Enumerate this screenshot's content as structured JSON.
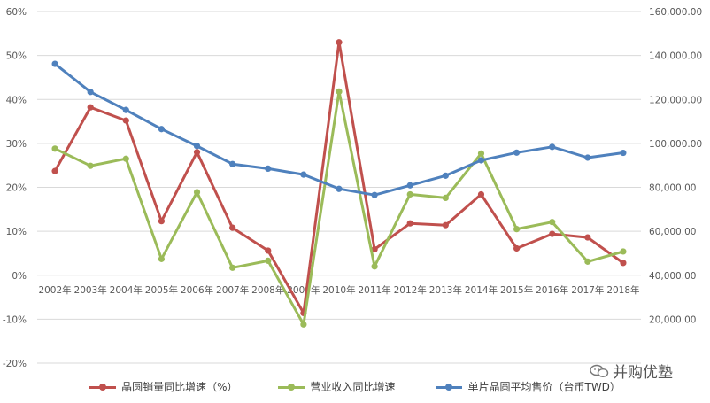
{
  "chart_data": {
    "type": "line",
    "categories": [
      "2002年",
      "2003年",
      "2004年",
      "2005年",
      "2006年",
      "2007年",
      "2008年",
      "2009年",
      "2010年",
      "2011年",
      "2012年",
      "2013年",
      "2014年",
      "2015年",
      "2016年",
      "2017年",
      "2018年"
    ],
    "y_left": {
      "range": [
        -20,
        60
      ],
      "ticks": [
        -20,
        -10,
        0,
        10,
        20,
        30,
        40,
        50,
        60
      ],
      "tick_labels": [
        "-20%",
        "-10%",
        "0%",
        "10%",
        "20%",
        "30%",
        "40%",
        "50%",
        "60%"
      ]
    },
    "y_right": {
      "range": [
        0,
        160000
      ],
      "ticks": [
        20000,
        40000,
        60000,
        80000,
        100000,
        120000,
        140000,
        160000
      ],
      "tick_labels": [
        "20,000.00",
        "40,000.00",
        "60,000.00",
        "80,000.00",
        "100,000.00",
        "120,000.00",
        "140,000.00",
        "160,000.00"
      ]
    },
    "series": [
      {
        "name": "晶圆销量同比增速（%）",
        "axis": "left",
        "color": "#c0504d",
        "values": [
          23.7,
          38.2,
          35.2,
          12.3,
          28.0,
          10.8,
          5.6,
          -8.6,
          53.0,
          5.9,
          11.8,
          11.4,
          18.4,
          6.1,
          9.4,
          8.6,
          2.8
        ]
      },
      {
        "name": "营业收入同比增速",
        "axis": "left",
        "color": "#9bbb59",
        "values": [
          28.8,
          24.9,
          26.5,
          3.7,
          18.9,
          1.7,
          3.3,
          -11.2,
          41.8,
          2.0,
          18.4,
          17.6,
          27.7,
          10.5,
          12.1,
          3.1,
          5.4
        ]
      },
      {
        "name": "单片晶圆平均售价（台币TWD）",
        "axis": "right",
        "color": "#4f81bd",
        "values": [
          136200,
          123400,
          115200,
          106500,
          98800,
          90600,
          88500,
          85800,
          79300,
          76500,
          80900,
          85300,
          92300,
          95800,
          98400,
          93500,
          95700
        ]
      }
    ],
    "legend_position": "bottom",
    "grid": true
  },
  "watermark": {
    "text": "并购优塾",
    "icon": "wechat-icon"
  }
}
